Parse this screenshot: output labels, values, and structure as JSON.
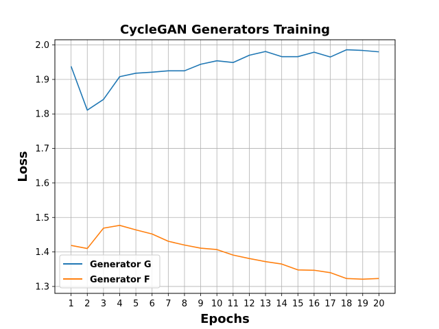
{
  "chart_data": {
    "type": "line",
    "title": "CycleGAN Generators Training",
    "xlabel": "Epochs",
    "ylabel": "Loss",
    "x": [
      1,
      2,
      3,
      4,
      5,
      6,
      7,
      8,
      9,
      10,
      11,
      12,
      13,
      14,
      15,
      16,
      17,
      18,
      19,
      20
    ],
    "xlim": [
      0.0,
      21.0
    ],
    "ylim": [
      1.28,
      2.015
    ],
    "yticks": [
      1.3,
      1.4,
      1.5,
      1.6,
      1.7,
      1.8,
      1.9,
      2.0
    ],
    "ytick_labels": [
      "1.3",
      "1.4",
      "1.5",
      "1.6",
      "1.7",
      "1.8",
      "1.9",
      "2.0"
    ],
    "xtick_labels": [
      "1",
      "2",
      "3",
      "4",
      "5",
      "6",
      "7",
      "8",
      "9",
      "10",
      "11",
      "12",
      "13",
      "14",
      "15",
      "16",
      "17",
      "18",
      "19",
      "20"
    ],
    "grid": true,
    "legend_position": "lower-left",
    "series": [
      {
        "name": "Generator G",
        "color": "#1f77b4",
        "values": [
          1.938,
          1.811,
          1.842,
          1.908,
          1.918,
          1.921,
          1.925,
          1.925,
          1.944,
          1.954,
          1.949,
          1.97,
          1.981,
          1.966,
          1.966,
          1.979,
          1.965,
          1.986,
          1.984,
          1.98
        ]
      },
      {
        "name": "Generator F",
        "color": "#ff7f0e",
        "values": [
          1.419,
          1.41,
          1.469,
          1.477,
          1.464,
          1.452,
          1.431,
          1.42,
          1.411,
          1.407,
          1.391,
          1.381,
          1.372,
          1.365,
          1.348,
          1.347,
          1.34,
          1.323,
          1.321,
          1.323
        ]
      }
    ]
  }
}
